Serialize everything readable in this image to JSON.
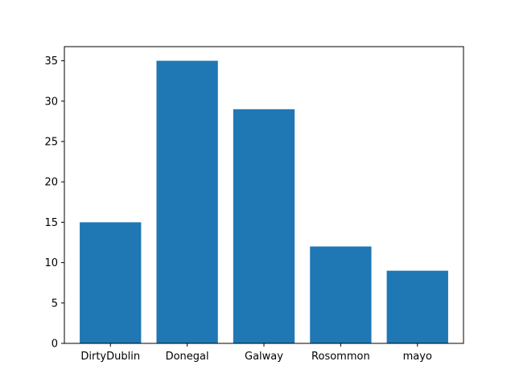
{
  "chart_data": {
    "type": "bar",
    "title": "",
    "xlabel": "",
    "ylabel": "",
    "categories": [
      "DirtyDublin",
      "Donegal",
      "Galway",
      "Rosommon",
      "mayo"
    ],
    "values": [
      15,
      35,
      29,
      12,
      9
    ],
    "ylim": [
      0,
      36.75
    ],
    "yticks": [
      0,
      5,
      10,
      15,
      20,
      25,
      30,
      35
    ],
    "bar_color": "#1f77b4",
    "grid": false,
    "legend": "none"
  }
}
